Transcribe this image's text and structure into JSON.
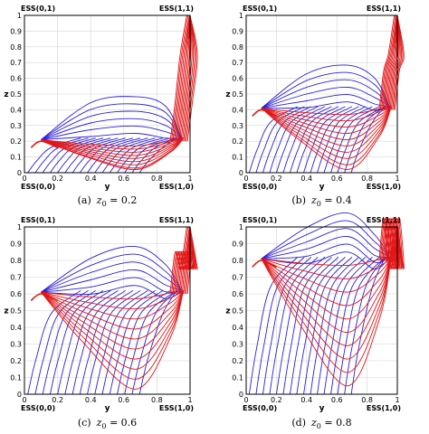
{
  "colors": {
    "blue": "#2a1fd6",
    "red": "#e21616",
    "axis": "#000000",
    "grid": "#d4d4d4"
  },
  "chart_data": [
    {
      "type": "line",
      "caption": "(a)  z₀ = 0.2",
      "caption_prefix": "(a)",
      "caption_var": "z",
      "caption_sub": "0",
      "caption_eq": " = 0.2",
      "xlabel": "y",
      "ylabel": "z",
      "xlim": [
        0,
        1
      ],
      "ylim": [
        0,
        1
      ],
      "x_ticks": [
        "0",
        "0.2",
        "0.4",
        "0.6",
        "0.8",
        "1"
      ],
      "y_ticks": [
        "0",
        "0.1",
        "0.2",
        "0.3",
        "0.4",
        "0.5",
        "0.6",
        "0.7",
        "0.8",
        "0.9",
        "1"
      ],
      "grid": true,
      "corner_labels": {
        "top_left": "ESS(0,1)",
        "top_right": "ESS(1,1)",
        "bottom_left": "ESS(0,0)",
        "bottom_right": "ESS(1,0)"
      },
      "z0": 0.2,
      "ridge": 0.2,
      "peak_x": 0.1,
      "peak_y": 0.2
    },
    {
      "type": "line",
      "caption": "(b)  z₀ = 0.4",
      "caption_prefix": "(b)",
      "caption_var": "z",
      "caption_sub": "0",
      "caption_eq": " = 0.4",
      "xlabel": "y",
      "ylabel": "z",
      "xlim": [
        0,
        1
      ],
      "ylim": [
        0,
        1
      ],
      "x_ticks": [
        "0",
        "0.2",
        "0.4",
        "0.6",
        "0.8",
        "1"
      ],
      "y_ticks": [
        "0",
        "0.1",
        "0.2",
        "0.3",
        "0.4",
        "0.5",
        "0.6",
        "0.7",
        "0.8",
        "0.9",
        "1"
      ],
      "grid": true,
      "corner_labels": {
        "top_left": "ESS(0,1)",
        "top_right": "ESS(1,1)",
        "bottom_left": "ESS(0,0)",
        "bottom_right": "ESS(1,0)"
      },
      "z0": 0.4,
      "ridge": 0.4,
      "peak_x": 0.1,
      "peak_y": 0.4
    },
    {
      "type": "line",
      "caption": "(c)  z₀ = 0.6",
      "caption_prefix": "(c)",
      "caption_var": "z",
      "caption_sub": "0",
      "caption_eq": " = 0.6",
      "xlabel": "y",
      "ylabel": "z",
      "xlim": [
        0,
        1
      ],
      "ylim": [
        0,
        1
      ],
      "x_ticks": [
        "0",
        "0.2",
        "0.4",
        "0.6",
        "0.8",
        "1"
      ],
      "y_ticks": [
        "0",
        "0.1",
        "0.2",
        "0.3",
        "0.4",
        "0.5",
        "0.6",
        "0.7",
        "0.8",
        "0.9",
        "1"
      ],
      "grid": true,
      "corner_labels": {
        "top_left": "ESS(0,1)",
        "top_right": "ESS(1,1)",
        "bottom_left": "ESS(0,0)",
        "bottom_right": "ESS(1,0)"
      },
      "z0": 0.6,
      "ridge": 0.6,
      "peak_x": 0.1,
      "peak_y": 0.6
    },
    {
      "type": "line",
      "caption": "(d)  z₀ = 0.8",
      "caption_prefix": "(d)",
      "caption_var": "z",
      "caption_sub": "0",
      "caption_eq": " = 0.8",
      "xlabel": "y",
      "ylabel": "z",
      "xlim": [
        0,
        1
      ],
      "ylim": [
        0,
        1
      ],
      "x_ticks": [
        "0",
        "0.2",
        "0.4",
        "0.6",
        "0.8",
        "1"
      ],
      "y_ticks": [
        "0",
        "0.1",
        "0.2",
        "0.3",
        "0.4",
        "0.5",
        "0.6",
        "0.7",
        "0.8",
        "0.9",
        "1"
      ],
      "grid": true,
      "corner_labels": {
        "top_left": "ESS(0,1)",
        "top_right": "ESS(1,1)",
        "bottom_left": "ESS(0,0)",
        "bottom_right": "ESS(1,0)"
      },
      "z0": 0.8,
      "ridge": 0.8,
      "peak_x": 0.1,
      "peak_y": 0.8
    }
  ]
}
